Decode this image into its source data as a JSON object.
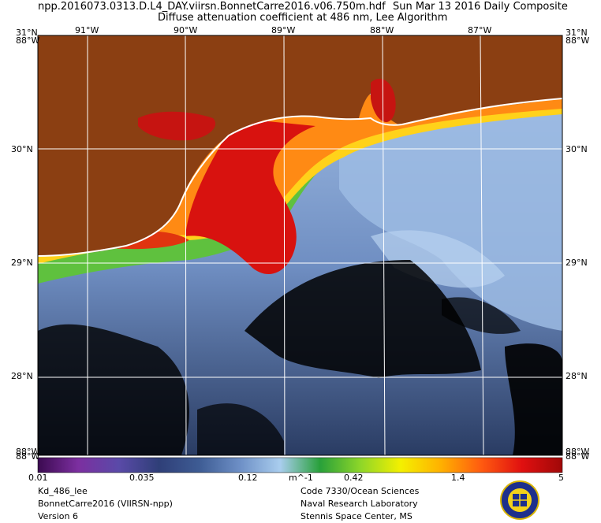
{
  "header": {
    "filename": "npp.2016073.0313.D.L4_DAY.viirsn.BonnetCarre2016.v06.750m.hdf",
    "date": "Sun Mar 13 2016 Daily Composite",
    "product": "Diffuse attenuation coefficient at 486 nm, Lee Algorithm"
  },
  "map": {
    "lon_labels": [
      "91°W",
      "90°W",
      "89°W",
      "88°W",
      "87°W"
    ],
    "lat_labels": [
      "30°N",
      "29°N",
      "28°N"
    ],
    "corner_tl_top": "31°N",
    "corner_tl_bottom": "88°W",
    "corner_tr_top": "31°N",
    "corner_tr_bottom": "88°W",
    "corner_bl_top": "88°W",
    "corner_bl_bottom": "88°W",
    "corner_br_top": "88°W",
    "corner_br_bottom": "88°W",
    "colors": {
      "land": "#8b3f12",
      "ocean_deep": "#2a3c63",
      "ocean_mid": "#6f8ec2",
      "ocean_light": "#a9c6ea",
      "plume_red": "#d91510",
      "plume_orange": "#ff7a10",
      "plume_yellow": "#ffe600",
      "plume_green": "#50c23a",
      "cloud": "#000000",
      "graticule": "#ffffff"
    }
  },
  "colorbar": {
    "ticks": [
      "0.01",
      "0.035",
      "0.12",
      "0.42",
      "1.4",
      "5"
    ],
    "unit": "m^-1",
    "stops": [
      "#3b0a50",
      "#7c2fa0",
      "#5a4aa8",
      "#2f3f78",
      "#3e5c94",
      "#6d8fc6",
      "#a9cdee",
      "#28a03a",
      "#8ed629",
      "#f4f000",
      "#ffb000",
      "#ff5a10",
      "#e01010",
      "#a00808"
    ]
  },
  "footer": {
    "left": [
      "Kd_486_lee",
      "BonnetCarre2016 (VIIRSN-npp)",
      "Version 6"
    ],
    "right": [
      "Code 7330/Ocean Sciences",
      "Naval Research Laboratory",
      "Stennis Space Center, MS"
    ]
  }
}
